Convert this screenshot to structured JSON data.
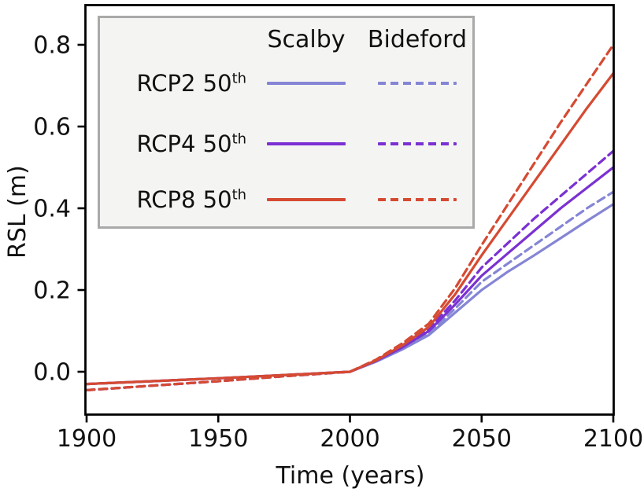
{
  "chart_data": {
    "type": "line",
    "title": "",
    "xlabel": "Time (years)",
    "ylabel": "RSL (m)",
    "xlim": [
      1900,
      2100
    ],
    "ylim": [
      -0.105,
      0.9
    ],
    "x_tick_values": [
      1900,
      1950,
      2000,
      2050,
      2100
    ],
    "x_tick_labels": [
      "1900",
      "1950",
      "2000",
      "2050",
      "2100"
    ],
    "y_tick_values": [
      0.0,
      0.2,
      0.4,
      0.6,
      0.8
    ],
    "y_tick_labels": [
      "0.0",
      "0.2",
      "0.4",
      "0.6",
      "0.8"
    ],
    "grid": false,
    "legend_position": "upper left",
    "series": [
      {
        "name": "RCP2 50th Scalby",
        "scenario": "RCP2 50th",
        "site": "Scalby",
        "color": "#8585d6",
        "dash": false,
        "x": [
          1900,
          1925,
          1950,
          1975,
          2000,
          2010,
          2020,
          2030,
          2040,
          2050,
          2060,
          2070,
          2080,
          2090,
          2100
        ],
        "y": [
          -0.03,
          -0.023,
          -0.016,
          -0.008,
          0.0,
          0.025,
          0.055,
          0.09,
          0.145,
          0.2,
          0.245,
          0.285,
          0.327,
          0.369,
          0.41
        ]
      },
      {
        "name": "RCP2 50th Bideford",
        "scenario": "RCP2 50th",
        "site": "Bideford",
        "color": "#8585d6",
        "dash": true,
        "x": [
          1900,
          1925,
          1950,
          1975,
          2000,
          2010,
          2020,
          2030,
          2040,
          2050,
          2060,
          2070,
          2080,
          2090,
          2100
        ],
        "y": [
          -0.045,
          -0.034,
          -0.023,
          -0.011,
          0.0,
          0.026,
          0.058,
          0.095,
          0.155,
          0.22,
          0.265,
          0.31,
          0.355,
          0.4,
          0.44
        ]
      },
      {
        "name": "RCP4 50th Scalby",
        "scenario": "RCP4 50th",
        "site": "Scalby",
        "color": "#7b31d1",
        "dash": false,
        "x": [
          1900,
          1925,
          1950,
          1975,
          2000,
          2010,
          2020,
          2030,
          2040,
          2050,
          2060,
          2070,
          2080,
          2090,
          2100
        ],
        "y": [
          -0.03,
          -0.023,
          -0.016,
          -0.008,
          0.0,
          0.027,
          0.06,
          0.1,
          0.165,
          0.235,
          0.29,
          0.345,
          0.4,
          0.45,
          0.5
        ]
      },
      {
        "name": "RCP4 50th Bideford",
        "scenario": "RCP4 50th",
        "site": "Bideford",
        "color": "#7b31d1",
        "dash": true,
        "x": [
          1900,
          1925,
          1950,
          1975,
          2000,
          2010,
          2020,
          2030,
          2040,
          2050,
          2060,
          2070,
          2080,
          2090,
          2100
        ],
        "y": [
          -0.045,
          -0.034,
          -0.023,
          -0.011,
          0.0,
          0.028,
          0.063,
          0.105,
          0.175,
          0.255,
          0.315,
          0.375,
          0.43,
          0.485,
          0.54
        ]
      },
      {
        "name": "RCP8 50th Scalby",
        "scenario": "RCP8 50th",
        "site": "Scalby",
        "color": "#d54a32",
        "dash": false,
        "x": [
          1900,
          1925,
          1950,
          1975,
          2000,
          2010,
          2020,
          2030,
          2040,
          2050,
          2060,
          2070,
          2080,
          2090,
          2100
        ],
        "y": [
          -0.03,
          -0.023,
          -0.016,
          -0.008,
          0.0,
          0.028,
          0.065,
          0.11,
          0.19,
          0.285,
          0.375,
          0.465,
          0.555,
          0.645,
          0.73
        ]
      },
      {
        "name": "RCP8 50th Bideford",
        "scenario": "RCP8 50th",
        "site": "Bideford",
        "color": "#d54a32",
        "dash": true,
        "x": [
          1900,
          1925,
          1950,
          1975,
          2000,
          2010,
          2020,
          2030,
          2040,
          2050,
          2060,
          2070,
          2080,
          2090,
          2100
        ],
        "y": [
          -0.045,
          -0.034,
          -0.023,
          -0.011,
          0.0,
          0.03,
          0.07,
          0.118,
          0.205,
          0.31,
          0.41,
          0.51,
          0.61,
          0.705,
          0.8
        ]
      }
    ]
  },
  "legend": {
    "columns": [
      "Scalby",
      "Bideford"
    ],
    "rows": [
      {
        "label": "RCP2 50",
        "sup": "th",
        "color_key": "rcp2"
      },
      {
        "label": "RCP4 50",
        "sup": "th",
        "color_key": "rcp4"
      },
      {
        "label": "RCP8 50",
        "sup": "th",
        "color_key": "rcp8"
      }
    ]
  },
  "colors": {
    "rcp2": "#8585d6",
    "rcp4": "#7b31d1",
    "rcp8": "#d54a32",
    "spine": "#000000",
    "text": "#111111",
    "legend_bg": "#f4f4f2",
    "legend_border": "#a9a9a9"
  }
}
